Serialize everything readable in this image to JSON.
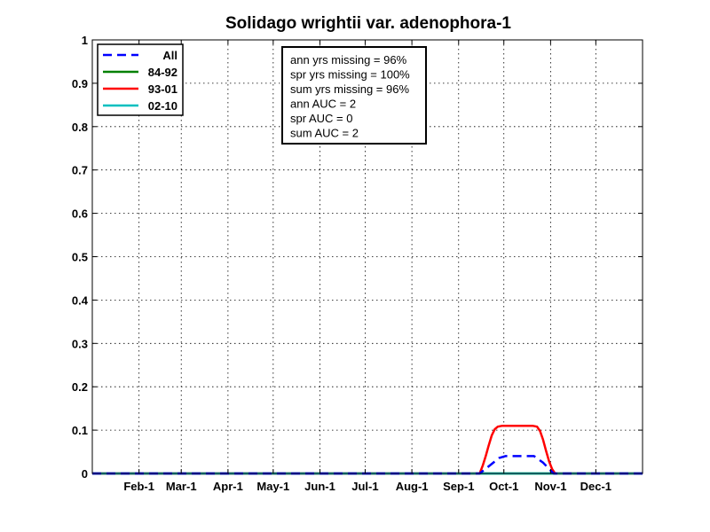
{
  "chart_data": {
    "type": "line",
    "title": "Solidago wrightii var. adenophora-1",
    "xlabel": "",
    "ylabel": "",
    "xlim": [
      1,
      366
    ],
    "ylim": [
      0,
      1
    ],
    "grid": true,
    "legend_position": "top-left",
    "x_ticks": [
      {
        "label": "Feb-1",
        "day": 32
      },
      {
        "label": "Mar-1",
        "day": 60
      },
      {
        "label": "Apr-1",
        "day": 91
      },
      {
        "label": "May-1",
        "day": 121
      },
      {
        "label": "Jun-1",
        "day": 152
      },
      {
        "label": "Jul-1",
        "day": 182
      },
      {
        "label": "Aug-1",
        "day": 213
      },
      {
        "label": "Sep-1",
        "day": 244
      },
      {
        "label": "Oct-1",
        "day": 274
      },
      {
        "label": "Nov-1",
        "day": 305
      },
      {
        "label": "Dec-1",
        "day": 335
      }
    ],
    "y_ticks": [
      0,
      0.1,
      0.2,
      0.3,
      0.4,
      0.5,
      0.6,
      0.7,
      0.8,
      0.9,
      1
    ],
    "y_tick_labels": [
      "0",
      "0.1",
      "0.2",
      "0.3",
      "0.4",
      "0.5",
      "0.6",
      "0.7",
      "0.8",
      "0.9",
      "1"
    ],
    "series": [
      {
        "name": "84-92",
        "color": "#008000",
        "style": "solid",
        "x": [
          1,
          366
        ],
        "y": [
          0,
          0
        ]
      },
      {
        "name": "93-01",
        "color": "#ff0000",
        "style": "solid",
        "x": [
          1,
          258,
          260,
          262,
          264,
          266,
          268,
          270,
          273,
          276,
          290,
          293,
          296,
          298,
          300,
          302,
          304,
          306,
          308,
          366
        ],
        "y": [
          0,
          0,
          0.018,
          0.04,
          0.065,
          0.088,
          0.102,
          0.108,
          0.11,
          0.11,
          0.11,
          0.11,
          0.108,
          0.098,
          0.078,
          0.052,
          0.028,
          0.01,
          0,
          0
        ]
      },
      {
        "name": "02-10",
        "color": "#00bfbf",
        "style": "solid",
        "x": [
          1,
          366
        ],
        "y": [
          0,
          0
        ]
      },
      {
        "name": "All",
        "color": "#0000ff",
        "style": "dashed",
        "x": [
          1,
          258,
          271,
          275,
          294,
          300,
          307,
          366
        ],
        "y": [
          0,
          0,
          0.036,
          0.04,
          0.04,
          0.025,
          0,
          0
        ]
      }
    ],
    "legend_order": [
      "All",
      "84-92",
      "93-01",
      "02-10"
    ],
    "annotation": [
      "ann yrs missing = 96%",
      "spr yrs missing = 100%",
      "sum yrs missing = 96%",
      "ann AUC = 2",
      "spr AUC = 0",
      "sum AUC = 2"
    ]
  }
}
